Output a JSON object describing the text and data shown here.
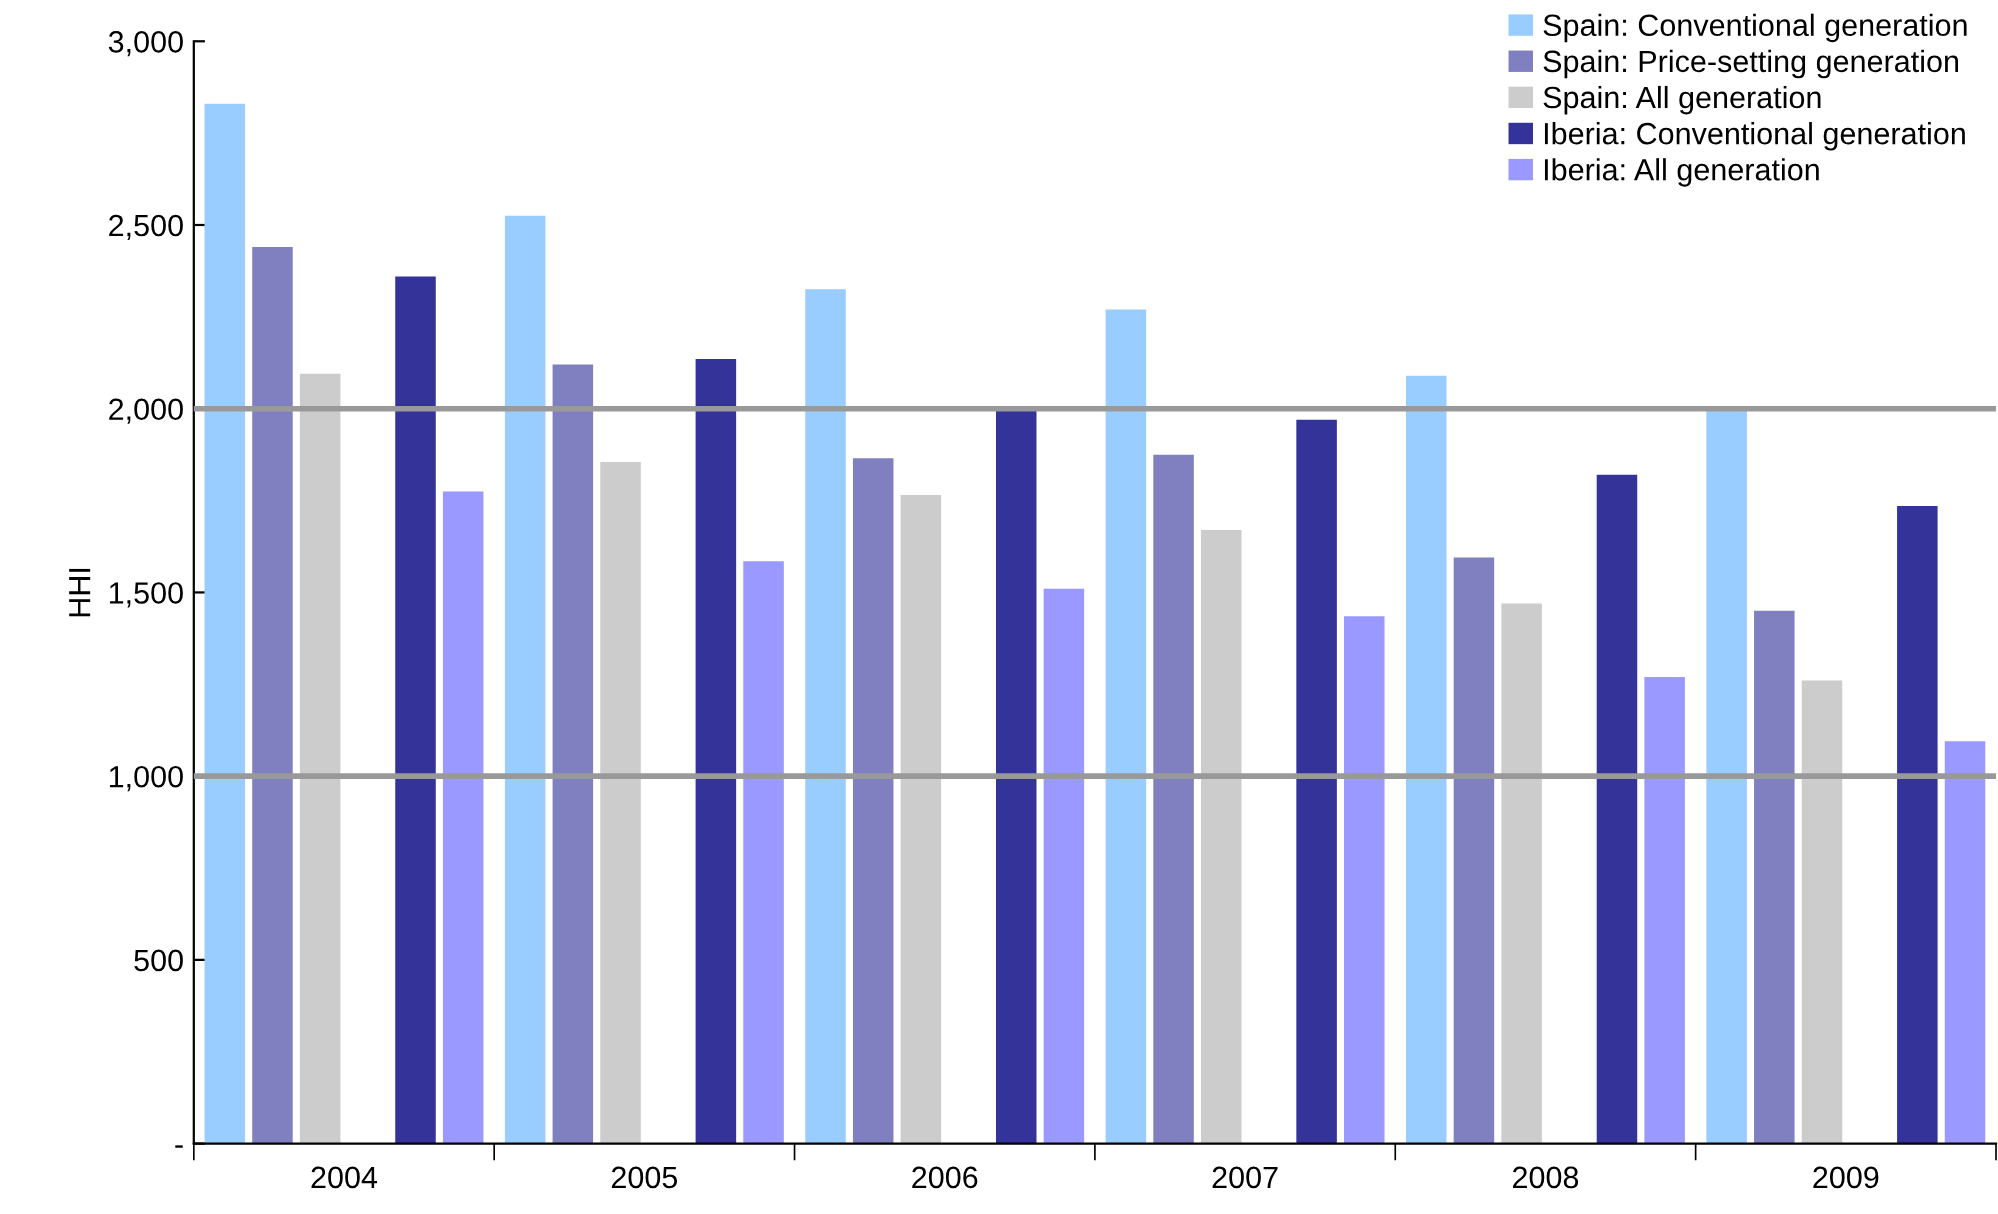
{
  "chart_data": {
    "type": "bar",
    "ylabel": "HHI",
    "categories": [
      "2004",
      "2005",
      "2006",
      "2007",
      "2008",
      "2009"
    ],
    "series": [
      {
        "name": "Spain: Conventional generation",
        "color": "#99ccff",
        "values": [
          2830,
          2525,
          2325,
          2270,
          2090,
          2000
        ]
      },
      {
        "name": "Spain: Price-setting generation",
        "color": "#8080c0",
        "values": [
          2440,
          2120,
          1865,
          1875,
          1595,
          1450
        ]
      },
      {
        "name": "Spain: All generation",
        "color": "#cccccc",
        "values": [
          2095,
          1855,
          1765,
          1670,
          1470,
          1260
        ]
      },
      {
        "name": "Iberia: Conventional generation",
        "color": "#333399",
        "values": [
          2360,
          2135,
          2000,
          1970,
          1820,
          1735
        ]
      },
      {
        "name": "Iberia: All generation",
        "color": "#9999ff",
        "values": [
          1775,
          1585,
          1510,
          1435,
          1270,
          1095
        ]
      }
    ],
    "ylim": [
      0,
      3000
    ],
    "yticks": [
      {
        "value": 0,
        "label": "-"
      },
      {
        "value": 500,
        "label": "500"
      },
      {
        "value": 1000,
        "label": "1,000"
      },
      {
        "value": 1500,
        "label": "1,500"
      },
      {
        "value": 2000,
        "label": "2,000"
      },
      {
        "value": 2500,
        "label": "2,500"
      },
      {
        "value": 3000,
        "label": "3,000"
      }
    ],
    "ref_lines": [
      {
        "axis": "y",
        "value": 2000,
        "label": null,
        "color": "#999999"
      },
      {
        "axis": "y",
        "value": 1000,
        "label": null,
        "color": "#999999"
      }
    ],
    "grid": false,
    "legend": "top right"
  }
}
